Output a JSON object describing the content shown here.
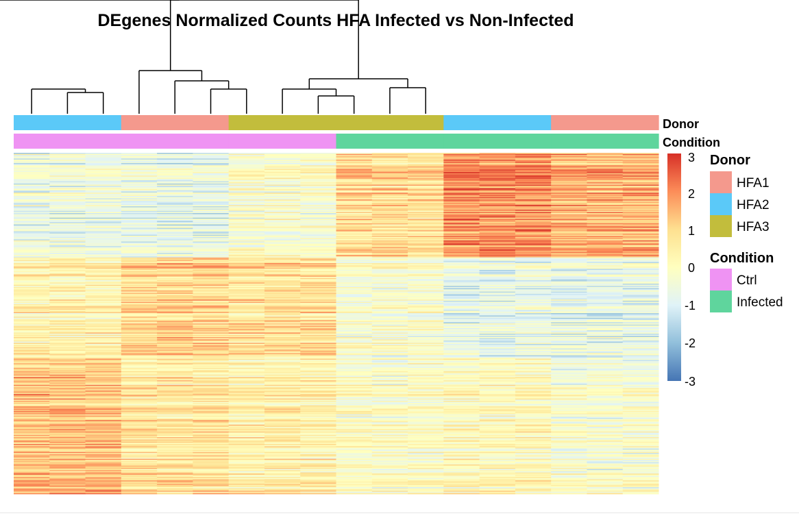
{
  "chart_data": {
    "type": "heatmap",
    "title": "DEgenes Normalized Counts HFA Infected vs Non-Infected",
    "samples_per_block": 3,
    "column_annotations": [
      {
        "name": "Donor",
        "values": [
          "HFA2",
          "HFA1",
          "HFA3",
          "HFA3",
          "HFA2",
          "HFA1"
        ]
      },
      {
        "name": "Condition",
        "values": [
          "Ctrl",
          "Ctrl",
          "Ctrl",
          "Infected",
          "Infected",
          "Infected"
        ]
      }
    ],
    "legend": [
      {
        "title": "Donor",
        "items": [
          {
            "label": "HFA1",
            "color": "#f4998d"
          },
          {
            "label": "HFA2",
            "color": "#5bc9f8"
          },
          {
            "label": "HFA3",
            "color": "#c2bd3c"
          }
        ]
      },
      {
        "title": "Condition",
        "items": [
          {
            "label": "Ctrl",
            "color": "#ef93f3"
          },
          {
            "label": "Infected",
            "color": "#5fd59d"
          }
        ]
      }
    ],
    "color_scale": {
      "range": [
        -3,
        3
      ],
      "ticks": [
        "3",
        "2",
        "1",
        "0",
        "-1",
        "-2",
        "-3"
      ],
      "colors": [
        "#4575b4",
        "#91bfdb",
        "#e0f3f8",
        "#ffffbf",
        "#fee090",
        "#fc8d59",
        "#d73027"
      ]
    },
    "row_clusters": [
      {
        "rows": 92,
        "mean": [
          -0.6,
          -0.7,
          -0.2,
          0.9,
          1.9,
          1.5
        ]
      },
      {
        "rows": 88,
        "mean": [
          0.4,
          1.1,
          0.9,
          -0.2,
          -0.7,
          -0.7
        ]
      },
      {
        "rows": 120,
        "mean": [
          1.3,
          0.7,
          0.4,
          -0.1,
          0.1,
          -0.3
        ]
      }
    ],
    "dendrogram": {
      "description": "column clustering of 18 samples",
      "merges": "left: (HFA2 Ctrl) + (HFA1 Ctrl, HFA3 Ctrl); right: (HFA3 Infected) + (HFA2 Infected, HFA1 Infected)"
    }
  }
}
